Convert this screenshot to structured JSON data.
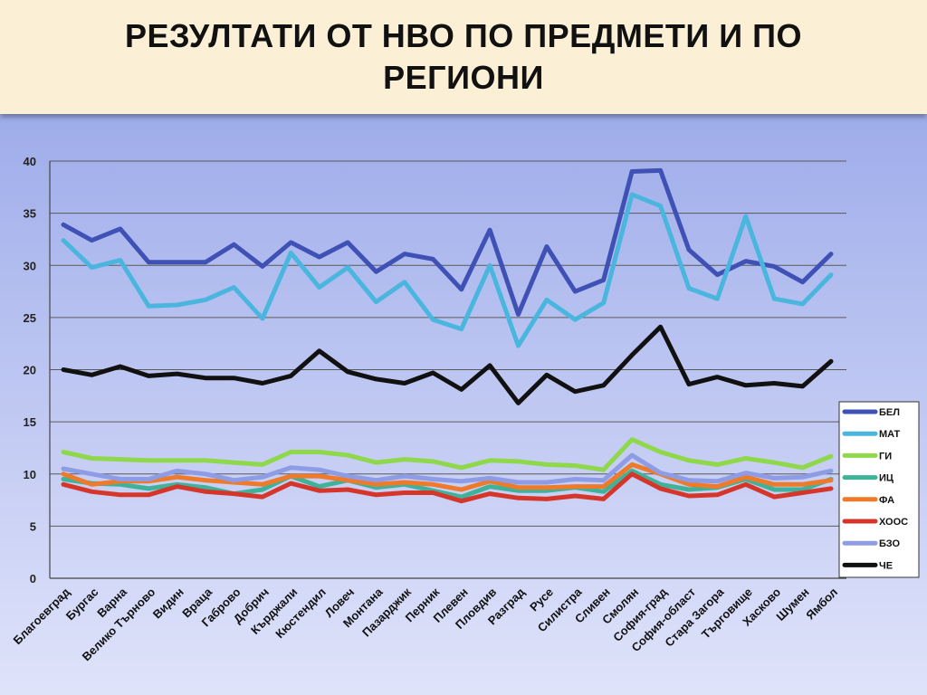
{
  "slide": {
    "title": "РЕЗУЛТАТИ ОТ НВО ПО ПРЕДМЕТИ И ПО РЕГИОНИ"
  },
  "chart_data": {
    "type": "line",
    "title": "",
    "xlabel": "",
    "ylabel": "",
    "ylim": [
      0,
      40
    ],
    "yticks": [
      0,
      5,
      10,
      15,
      20,
      25,
      30,
      35,
      40
    ],
    "grid": true,
    "legend_position": "right",
    "categories": [
      "Благоевград",
      "Бургас",
      "Варна",
      "Велико Търново",
      "Видин",
      "Враца",
      "Габрово",
      "Добрич",
      "Кърджали",
      "Кюстендил",
      "Ловеч",
      "Монтана",
      "Пазарджик",
      "Перник",
      "Плевен",
      "Пловдив",
      "Разград",
      "Русе",
      "Силистра",
      "Сливен",
      "Смолян",
      "София-град",
      "София-област",
      "Стара Загора",
      "Търговище",
      "Хасково",
      "Шумен",
      "Ямбол"
    ],
    "series": [
      {
        "name": "БЕЛ",
        "color": "#3f51b5",
        "values": [
          33.9,
          32.4,
          33.5,
          30.3,
          30.3,
          30.3,
          32.0,
          29.9,
          32.2,
          30.8,
          32.2,
          29.4,
          31.1,
          30.6,
          27.7,
          33.4,
          25.3,
          31.8,
          27.5,
          28.6,
          39.0,
          39.1,
          31.5,
          29.1,
          30.4,
          29.9,
          28.4,
          31.1
        ]
      },
      {
        "name": "МАТ",
        "color": "#4bb6dd",
        "values": [
          32.4,
          29.8,
          30.5,
          26.1,
          26.2,
          26.7,
          27.9,
          24.9,
          31.2,
          27.9,
          29.8,
          26.5,
          28.4,
          24.8,
          23.9,
          30.0,
          22.3,
          26.7,
          24.8,
          26.4,
          36.8,
          35.7,
          27.8,
          26.8,
          34.7,
          26.8,
          26.3,
          29.1
        ]
      },
      {
        "name": "ГИ",
        "color": "#8ed84a",
        "values": [
          12.1,
          11.5,
          11.4,
          11.3,
          11.3,
          11.3,
          11.1,
          10.9,
          12.1,
          12.1,
          11.8,
          11.1,
          11.4,
          11.2,
          10.6,
          11.3,
          11.2,
          10.9,
          10.8,
          10.4,
          13.3,
          12.1,
          11.3,
          10.9,
          11.5,
          11.1,
          10.6,
          11.7
        ]
      },
      {
        "name": "ИЦ",
        "color": "#3fb29a",
        "values": [
          9.5,
          9.1,
          9.0,
          8.6,
          9.0,
          8.7,
          8.1,
          8.5,
          9.8,
          8.8,
          9.4,
          8.7,
          9.0,
          8.4,
          7.8,
          8.8,
          8.4,
          8.4,
          8.7,
          8.3,
          10.3,
          9.0,
          8.5,
          8.7,
          9.5,
          8.5,
          8.5,
          9.5
        ]
      },
      {
        "name": "ФА",
        "color": "#ee7a2a",
        "values": [
          10.0,
          9.0,
          9.3,
          9.3,
          9.7,
          9.4,
          9.2,
          9.0,
          9.8,
          9.8,
          9.4,
          9.0,
          9.2,
          9.0,
          8.5,
          9.3,
          8.7,
          8.7,
          8.8,
          8.8,
          10.9,
          10.0,
          9.0,
          8.8,
          9.7,
          9.0,
          9.0,
          9.4
        ]
      },
      {
        "name": "ХООС",
        "color": "#d6352a",
        "values": [
          9.0,
          8.3,
          8.0,
          8.0,
          8.8,
          8.3,
          8.1,
          7.8,
          9.1,
          8.4,
          8.5,
          8.0,
          8.2,
          8.2,
          7.4,
          8.1,
          7.7,
          7.6,
          7.9,
          7.6,
          10.0,
          8.6,
          7.9,
          8.0,
          9.0,
          7.8,
          8.2,
          8.6
        ]
      },
      {
        "name": "БЗО",
        "color": "#8d9ce4",
        "values": [
          10.5,
          10.0,
          9.5,
          9.5,
          10.3,
          10.0,
          9.4,
          9.7,
          10.6,
          10.4,
          9.8,
          9.4,
          9.8,
          9.5,
          9.3,
          9.6,
          9.2,
          9.2,
          9.5,
          9.4,
          11.8,
          10.1,
          9.4,
          9.3,
          10.1,
          9.6,
          9.7,
          10.3
        ]
      },
      {
        "name": "ЧЕ",
        "color": "#111111",
        "values": [
          20.0,
          19.5,
          20.3,
          19.4,
          19.6,
          19.2,
          19.2,
          18.7,
          19.4,
          21.8,
          19.8,
          19.1,
          18.7,
          19.7,
          18.1,
          20.4,
          16.8,
          19.5,
          17.9,
          18.5,
          21.4,
          24.1,
          18.6,
          19.3,
          18.5,
          18.7,
          18.4,
          20.8
        ]
      }
    ]
  }
}
